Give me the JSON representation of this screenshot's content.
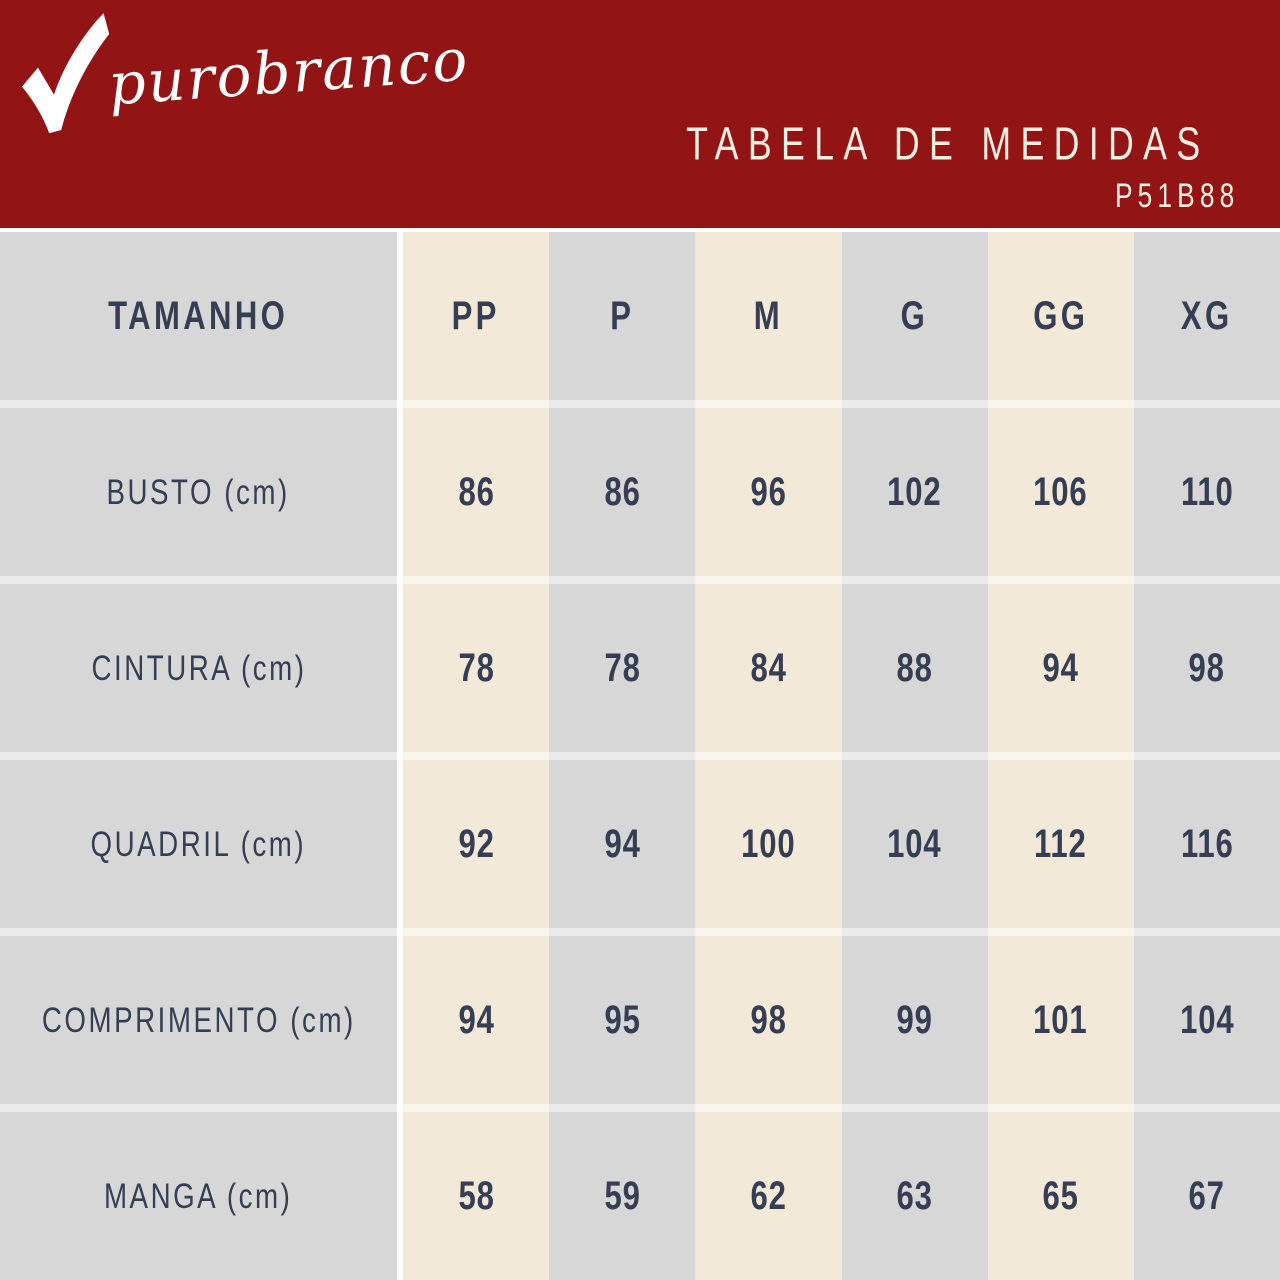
{
  "brand": {
    "name": "purobranco",
    "logo_icon": "checkmark-icon"
  },
  "header": {
    "title": "TABELA DE MEDIDAS",
    "product_code": "P51B88"
  },
  "colors": {
    "banner_red": "#921414",
    "column_gray": "#d7d7d8",
    "column_cream": "#f3e9d8",
    "text_navy": "#353e52",
    "banner_text": "#f6efe1",
    "logo_white": "#ffffff"
  },
  "table": {
    "corner_label": "TAMANHO",
    "columns": [
      "PP",
      "P",
      "M",
      "G",
      "GG",
      "XG"
    ],
    "rows": [
      {
        "label": "BUSTO (cm)",
        "values": [
          "86",
          "86",
          "96",
          "102",
          "106",
          "110"
        ]
      },
      {
        "label": "CINTURA (cm)",
        "values": [
          "78",
          "78",
          "84",
          "88",
          "94",
          "98"
        ]
      },
      {
        "label": "QUADRIL (cm)",
        "values": [
          "92",
          "94",
          "100",
          "104",
          "112",
          "116"
        ]
      },
      {
        "label": "COMPRIMENTO (cm)",
        "values": [
          "94",
          "95",
          "98",
          "99",
          "101",
          "104"
        ]
      },
      {
        "label": "MANGA (cm)",
        "values": [
          "58",
          "59",
          "62",
          "63",
          "65",
          "67"
        ]
      }
    ]
  },
  "chart_data": {
    "type": "table",
    "title": "TABELA DE MEDIDAS",
    "subtitle": "P51B88",
    "columns": [
      "TAMANHO",
      "PP",
      "P",
      "M",
      "G",
      "GG",
      "XG"
    ],
    "rows": [
      [
        "BUSTO (cm)",
        86,
        86,
        96,
        102,
        106,
        110
      ],
      [
        "CINTURA (cm)",
        78,
        78,
        84,
        88,
        94,
        98
      ],
      [
        "QUADRIL (cm)",
        92,
        94,
        100,
        104,
        112,
        116
      ],
      [
        "COMPRIMENTO (cm)",
        94,
        95,
        98,
        99,
        101,
        104
      ],
      [
        "MANGA (cm)",
        58,
        59,
        62,
        63,
        65,
        67
      ]
    ]
  }
}
